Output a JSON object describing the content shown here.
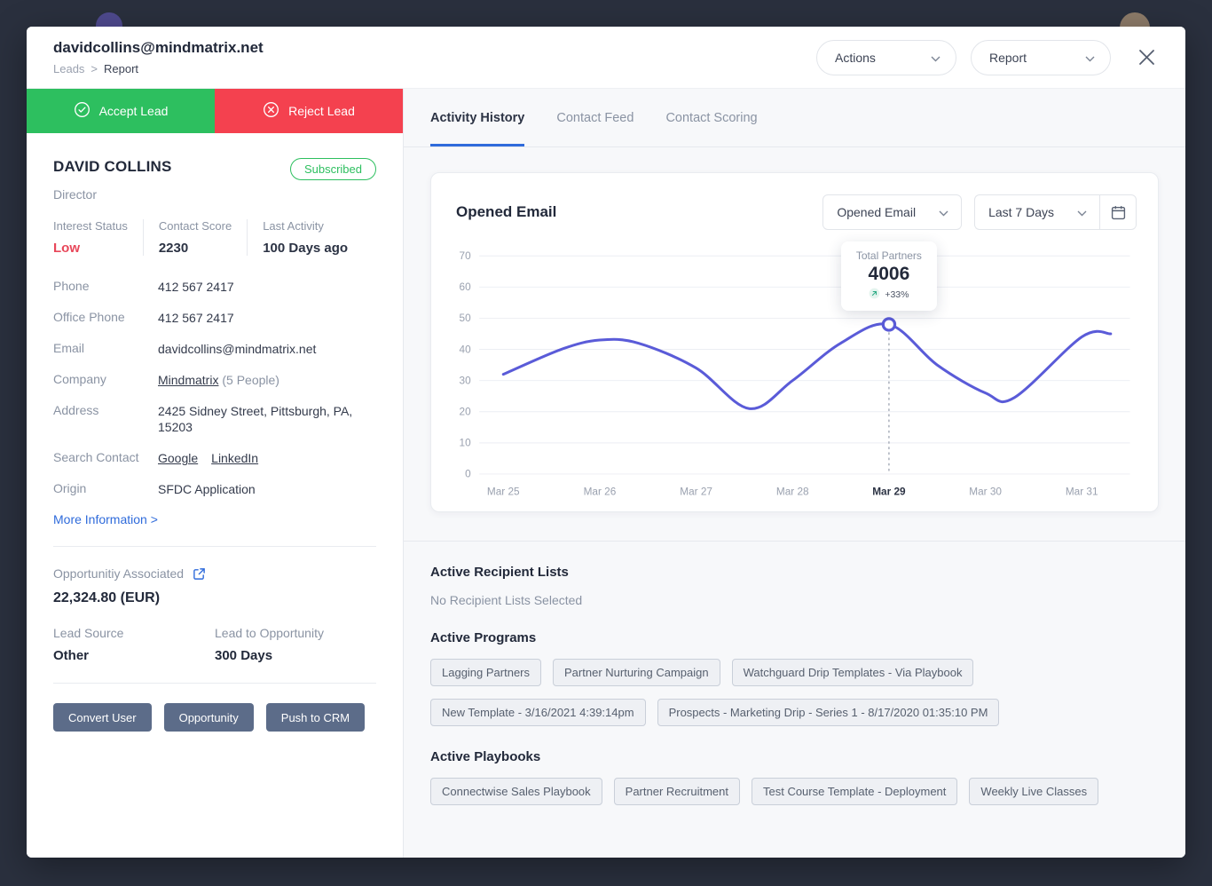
{
  "header": {
    "title": "davidcollins@mindmatrix.net",
    "breadcrumb": {
      "parent": "Leads",
      "separator": ">",
      "current": "Report"
    },
    "actions_label": "Actions",
    "report_label": "Report"
  },
  "lead_actions": {
    "accept_label": "Accept Lead",
    "reject_label": "Reject Lead"
  },
  "profile": {
    "name": "DAVID COLLINS",
    "role": "Director",
    "badge": "Subscribed",
    "stats": [
      {
        "label": "Interest Status",
        "value": "Low"
      },
      {
        "label": "Contact Score",
        "value": "2230"
      },
      {
        "label": "Last Activity",
        "value": "100 Days ago"
      }
    ],
    "details": {
      "phone": {
        "label": "Phone",
        "value": "412 567 2417"
      },
      "office_phone": {
        "label": "Office Phone",
        "value": "412 567 2417"
      },
      "email": {
        "label": "Email",
        "value": "davidcollins@mindmatrix.net"
      },
      "company": {
        "label": "Company",
        "link": "Mindmatrix",
        "suffix": "(5 People)"
      },
      "address": {
        "label": "Address",
        "value": "2425 Sidney Street, Pittsburgh, PA, 15203"
      },
      "search_contact": {
        "label": "Search Contact",
        "link1": "Google",
        "link2": "LinkedIn"
      },
      "origin": {
        "label": "Origin",
        "value": "SFDC Application"
      }
    },
    "more_information": "More Information >",
    "opportunity": {
      "label": "Opportunitiy Associated",
      "value": "22,324.80 (EUR)"
    },
    "lead_source": {
      "label": "Lead Source",
      "value": "Other"
    },
    "lead_to_opportunity": {
      "label": "Lead to Opportunity",
      "value": "300 Days"
    },
    "footer_buttons": {
      "convert": "Convert User",
      "opportunity": "Opportunity",
      "push_crm": "Push to CRM"
    }
  },
  "tabs": [
    {
      "label": "Activity History",
      "active": true
    },
    {
      "label": "Contact Feed",
      "active": false
    },
    {
      "label": "Contact Scoring",
      "active": false
    }
  ],
  "chart_card": {
    "title": "Opened Email",
    "metric_select": "Opened Email",
    "range_select": "Last 7 Days"
  },
  "chart_data": {
    "type": "line",
    "title": "Opened Email",
    "x_ticks": [
      "Mar 25",
      "Mar 26",
      "Mar 27",
      "Mar 28",
      "Mar 29",
      "Mar 30",
      "Mar 31"
    ],
    "y_ticks": [
      0,
      10,
      20,
      30,
      40,
      50,
      60,
      70
    ],
    "ylim": [
      0,
      70
    ],
    "x_domain": [
      -0.25,
      6.5
    ],
    "grid": true,
    "legend": false,
    "line_color": "#5a5bd8",
    "series": [
      {
        "name": "Opened Email",
        "points": [
          [
            0,
            32
          ],
          [
            0.6,
            40
          ],
          [
            1,
            43
          ],
          [
            1.4,
            42
          ],
          [
            2,
            34
          ],
          [
            2.55,
            21
          ],
          [
            3,
            30
          ],
          [
            3.5,
            42
          ],
          [
            4,
            48
          ],
          [
            4.5,
            35
          ],
          [
            5,
            26
          ],
          [
            5.3,
            24.5
          ],
          [
            6,
            44
          ],
          [
            6.3,
            45
          ]
        ]
      }
    ],
    "highlight": {
      "x": 4,
      "y": 48,
      "x_tick": "Mar 29",
      "label": "Total Partners",
      "value": "4006",
      "delta": "+33%"
    }
  },
  "sections": {
    "recipient_lists": {
      "title": "Active Recipient Lists",
      "empty_text": "No Recipient Lists Selected"
    },
    "programs": {
      "title": "Active Programs",
      "items": [
        "Lagging Partners",
        "Partner Nurturing Campaign",
        "Watchguard Drip Templates - Via Playbook",
        "New Template - 3/16/2021 4:39:14pm",
        "Prospects - Marketing Drip - Series 1 - 8/17/2020 01:35:10 PM"
      ]
    },
    "playbooks": {
      "title": "Active Playbooks",
      "items": [
        "Connectwise Sales Playbook",
        "Partner Recruitment",
        "Test Course Template - Deployment",
        "Weekly Live Classes"
      ]
    }
  },
  "colors": {
    "accent_green": "#2dbf5f",
    "accent_red": "#f4414f",
    "line_indigo": "#5a5bd8",
    "link_blue": "#2f6bdb",
    "slate_button": "#5c6c89"
  }
}
